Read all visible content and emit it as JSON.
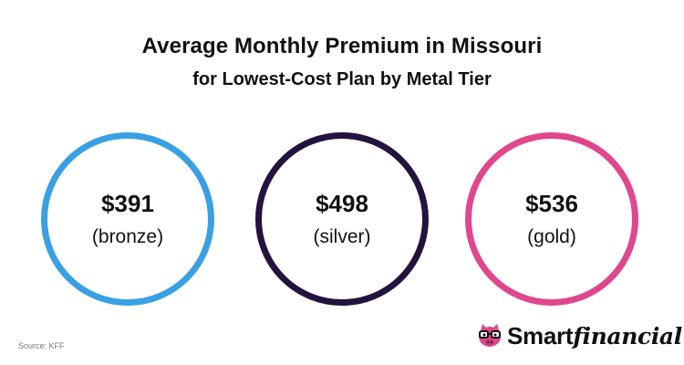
{
  "title": {
    "line1": "Average Monthly Premium in Missouri",
    "line2": "for Lowest-Cost Plan by Metal Tier"
  },
  "tiers": [
    {
      "price": "$391",
      "label": "(bronze)",
      "color": "#3aa0e4"
    },
    {
      "price": "$498",
      "label": "(silver)",
      "color": "#24123f"
    },
    {
      "price": "$536",
      "label": "(gold)",
      "color": "#e0478c"
    }
  ],
  "source": "Source: KFF",
  "logo": {
    "icon": "pig-with-glasses-icon",
    "smart": "Smart",
    "financial": "financial",
    "icon_color": "#e0478c"
  }
}
